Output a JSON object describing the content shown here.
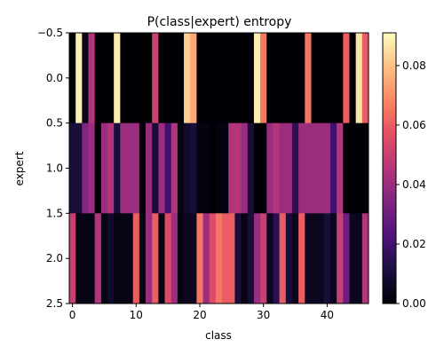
{
  "chart_data": {
    "type": "heatmap",
    "title": "P(class|expert) entropy",
    "xlabel": "class",
    "ylabel": "expert",
    "x_ticks": [
      0,
      10,
      20,
      30,
      40
    ],
    "x_tick_labels": [
      "0",
      "10",
      "20",
      "30",
      "40"
    ],
    "y_ticks": [
      -0.5,
      0.0,
      0.5,
      1.0,
      1.5,
      2.0,
      2.5
    ],
    "y_tick_labels": [
      "−0.5",
      "0.0",
      "0.5",
      "1.0",
      "1.5",
      "2.0",
      "2.5"
    ],
    "xlim": [
      -0.5,
      46.5
    ],
    "ylim": [
      2.5,
      -0.5
    ],
    "colormap": "magma",
    "colorbar": {
      "vmin": 0.0,
      "vmax": 0.091,
      "ticks": [
        0.0,
        0.02,
        0.04,
        0.06,
        0.08
      ],
      "tick_labels": [
        "0.00",
        "0.02",
        "0.04",
        "0.06",
        "0.08"
      ]
    },
    "rows": [
      "0",
      "1",
      "2"
    ],
    "values": [
      [
        0.0,
        0.088,
        0.004,
        0.045,
        0.0,
        0.0,
        0.0,
        0.088,
        0.0,
        0.0,
        0.0,
        0.0,
        0.0,
        0.052,
        0.0,
        0.0,
        0.0,
        0.0,
        0.082,
        0.075,
        0.0,
        0.0,
        0.0,
        0.0,
        0.0,
        0.0,
        0.0,
        0.0,
        0.0,
        0.088,
        0.065,
        0.0,
        0.0,
        0.0,
        0.0,
        0.0,
        0.0,
        0.065,
        0.0,
        0.0,
        0.0,
        0.0,
        0.0,
        0.06,
        0.0,
        0.086,
        0.06
      ],
      [
        0.01,
        0.01,
        0.035,
        0.04,
        0.0,
        0.04,
        0.045,
        0.01,
        0.04,
        0.04,
        0.04,
        0.0,
        0.04,
        0.01,
        0.04,
        0.02,
        0.045,
        0.003,
        0.008,
        0.01,
        0.002,
        0.002,
        0.0,
        0.002,
        0.002,
        0.045,
        0.045,
        0.04,
        0.01,
        0.0,
        0.0,
        0.04,
        0.045,
        0.04,
        0.04,
        0.015,
        0.04,
        0.04,
        0.04,
        0.04,
        0.04,
        0.02,
        0.045,
        0.0,
        0.0,
        0.0,
        0.0
      ],
      [
        0.05,
        0.003,
        0.003,
        0.003,
        0.045,
        0.003,
        0.008,
        0.003,
        0.003,
        0.003,
        0.06,
        0.003,
        0.04,
        0.06,
        0.003,
        0.055,
        0.04,
        0.003,
        0.005,
        0.005,
        0.065,
        0.04,
        0.055,
        0.065,
        0.06,
        0.06,
        0.01,
        0.003,
        0.01,
        0.04,
        0.05,
        0.005,
        0.015,
        0.06,
        0.01,
        0.005,
        0.06,
        0.005,
        0.005,
        0.005,
        0.01,
        0.005,
        0.05,
        0.03,
        0.005,
        0.005,
        0.045
      ]
    ]
  }
}
